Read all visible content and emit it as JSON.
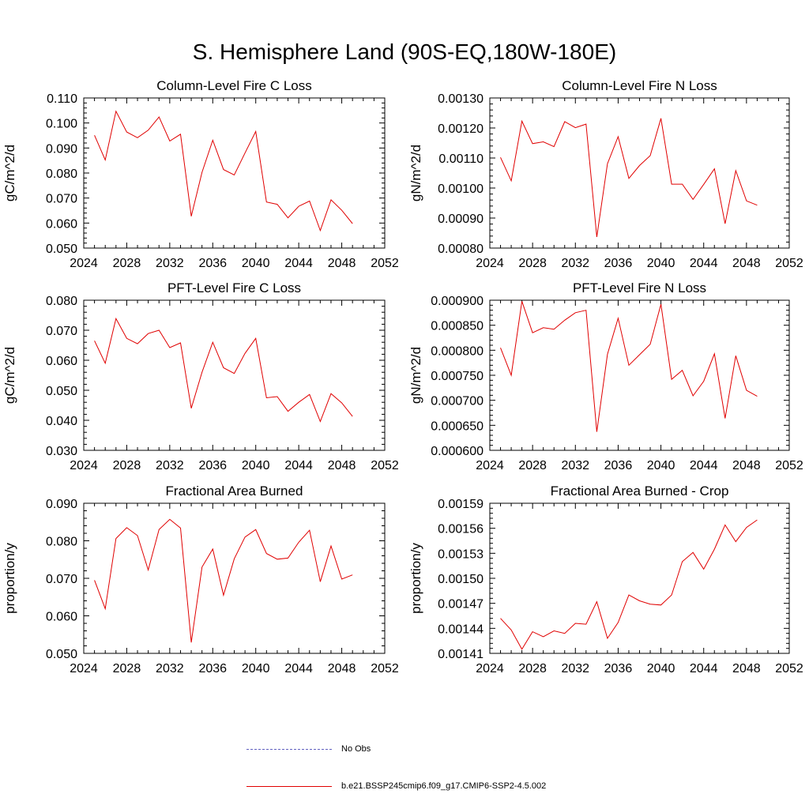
{
  "title": "S. Hemisphere Land (90S-EQ,180W-180E)",
  "legend": {
    "obs_label": "No Obs",
    "obs_color": "#6060c0",
    "model_label": "b.e21.BSSP245cmip6.f09_g17.CMIP6-SSP2-4.5.002",
    "model_color": "#e00000"
  },
  "chart_data": [
    {
      "type": "line",
      "title": "Column-Level Fire C Loss",
      "ylabel": "gC/m^2/d",
      "xlim": [
        2024,
        2052
      ],
      "xticks": [
        "2024",
        "2028",
        "2032",
        "2036",
        "2040",
        "2044",
        "2048",
        "2052"
      ],
      "ylim": [
        0.05,
        0.11
      ],
      "yticks": [
        "0.050",
        "0.060",
        "0.070",
        "0.080",
        "0.090",
        "0.100",
        "0.110"
      ],
      "x": [
        2025,
        2026,
        2027,
        2028,
        2029,
        2030,
        2031,
        2032,
        2033,
        2034,
        2035,
        2036,
        2037,
        2038,
        2039,
        2040,
        2041,
        2042,
        2043,
        2044,
        2045,
        2046,
        2047,
        2048,
        2049
      ],
      "series": [
        {
          "values": [
            0.0951,
            0.0852,
            0.1047,
            0.0964,
            0.0941,
            0.0971,
            0.1024,
            0.0928,
            0.0955,
            0.0627,
            0.0803,
            0.0931,
            0.0814,
            0.0792,
            0.088,
            0.0966,
            0.0684,
            0.0675,
            0.0621,
            0.0667,
            0.0688,
            0.057,
            0.0693,
            0.0651,
            0.0598
          ]
        }
      ]
    },
    {
      "type": "line",
      "title": "Column-Level Fire N Loss",
      "ylabel": "gN/m^2/d",
      "xlim": [
        2024,
        2052
      ],
      "xticks": [
        "2024",
        "2028",
        "2032",
        "2036",
        "2040",
        "2044",
        "2048",
        "2052"
      ],
      "ylim": [
        0.0008,
        0.0013
      ],
      "yticks": [
        "0.00080",
        "0.00090",
        "0.00100",
        "0.00110",
        "0.00120",
        "0.00130"
      ],
      "x": [
        2025,
        2026,
        2027,
        2028,
        2029,
        2030,
        2031,
        2032,
        2033,
        2034,
        2035,
        2036,
        2037,
        2038,
        2039,
        2040,
        2041,
        2042,
        2043,
        2044,
        2045,
        2046,
        2047,
        2048,
        2049
      ],
      "series": [
        {
          "values": [
            0.001102,
            0.001024,
            0.001223,
            0.001148,
            0.001154,
            0.001138,
            0.001221,
            0.001201,
            0.001213,
            0.000837,
            0.001081,
            0.001171,
            0.001032,
            0.001075,
            0.001108,
            0.001232,
            0.001013,
            0.001013,
            0.000962,
            0.001012,
            0.001064,
            0.000881,
            0.001058,
            0.000957,
            0.000943
          ]
        }
      ]
    },
    {
      "type": "line",
      "title": "PFT-Level Fire C Loss",
      "ylabel": "gC/m^2/d",
      "xlim": [
        2024,
        2052
      ],
      "xticks": [
        "2024",
        "2028",
        "2032",
        "2036",
        "2040",
        "2044",
        "2048",
        "2052"
      ],
      "ylim": [
        0.03,
        0.08
      ],
      "yticks": [
        "0.030",
        "0.040",
        "0.050",
        "0.060",
        "0.070",
        "0.080"
      ],
      "x": [
        2025,
        2026,
        2027,
        2028,
        2029,
        2030,
        2031,
        2032,
        2033,
        2034,
        2035,
        2036,
        2037,
        2038,
        2039,
        2040,
        2041,
        2042,
        2043,
        2044,
        2045,
        2046,
        2047,
        2048,
        2049
      ],
      "series": [
        {
          "values": [
            0.0665,
            0.059,
            0.0739,
            0.0673,
            0.0655,
            0.0689,
            0.07,
            0.0642,
            0.0658,
            0.044,
            0.056,
            0.066,
            0.0575,
            0.0556,
            0.0623,
            0.0673,
            0.0475,
            0.0479,
            0.043,
            0.046,
            0.0486,
            0.0396,
            0.0489,
            0.0458,
            0.0413
          ]
        }
      ]
    },
    {
      "type": "line",
      "title": "PFT-Level Fire N Loss",
      "ylabel": "gN/m^2/d",
      "xlim": [
        2024,
        2052
      ],
      "xticks": [
        "2024",
        "2028",
        "2032",
        "2036",
        "2040",
        "2044",
        "2048",
        "2052"
      ],
      "ylim": [
        0.0006,
        0.0009
      ],
      "yticks": [
        "0.000600",
        "0.000650",
        "0.000700",
        "0.000750",
        "0.000800",
        "0.000850",
        "0.000900"
      ],
      "x": [
        2025,
        2026,
        2027,
        2028,
        2029,
        2030,
        2031,
        2032,
        2033,
        2034,
        2035,
        2036,
        2037,
        2038,
        2039,
        2040,
        2041,
        2042,
        2043,
        2044,
        2045,
        2046,
        2047,
        2048,
        2049
      ],
      "series": [
        {
          "values": [
            0.000805,
            0.00075,
            0.000898,
            0.000835,
            0.000845,
            0.000842,
            0.00086,
            0.000875,
            0.00088,
            0.000637,
            0.000792,
            0.000864,
            0.00077,
            0.000791,
            0.000812,
            0.000892,
            0.000742,
            0.00076,
            0.000709,
            0.000738,
            0.000793,
            0.000664,
            0.000789,
            0.00072,
            0.000708
          ]
        }
      ]
    },
    {
      "type": "line",
      "title": "Fractional Area Burned",
      "ylabel": "proportion/y",
      "xlim": [
        2024,
        2052
      ],
      "xticks": [
        "2024",
        "2028",
        "2032",
        "2036",
        "2040",
        "2044",
        "2048",
        "2052"
      ],
      "ylim": [
        0.05,
        0.09
      ],
      "yticks": [
        "0.050",
        "0.060",
        "0.070",
        "0.080",
        "0.090"
      ],
      "x": [
        2025,
        2026,
        2027,
        2028,
        2029,
        2030,
        2031,
        2032,
        2033,
        2034,
        2035,
        2036,
        2037,
        2038,
        2039,
        2040,
        2041,
        2042,
        2043,
        2044,
        2045,
        2046,
        2047,
        2048,
        2049
      ],
      "series": [
        {
          "values": [
            0.0695,
            0.0619,
            0.0806,
            0.0835,
            0.0814,
            0.0722,
            0.083,
            0.0857,
            0.0834,
            0.0529,
            0.073,
            0.0778,
            0.0655,
            0.0752,
            0.081,
            0.083,
            0.0766,
            0.0751,
            0.0754,
            0.0796,
            0.0828,
            0.0691,
            0.0786,
            0.0698,
            0.0709
          ]
        }
      ]
    },
    {
      "type": "line",
      "title": "Fractional Area Burned - Crop",
      "ylabel": "proportion/y",
      "xlim": [
        2024,
        2052
      ],
      "xticks": [
        "2024",
        "2028",
        "2032",
        "2036",
        "2040",
        "2044",
        "2048",
        "2052"
      ],
      "ylim": [
        0.00141,
        0.00159
      ],
      "yticks": [
        "0.00141",
        "0.00144",
        "0.00147",
        "0.00150",
        "0.00153",
        "0.00156",
        "0.00159"
      ],
      "x": [
        2025,
        2026,
        2027,
        2028,
        2029,
        2030,
        2031,
        2032,
        2033,
        2034,
        2035,
        2036,
        2037,
        2038,
        2039,
        2040,
        2041,
        2042,
        2043,
        2044,
        2045,
        2046,
        2047,
        2048,
        2049
      ],
      "series": [
        {
          "values": [
            0.001452,
            0.001438,
            0.001415,
            0.001436,
            0.00143,
            0.001437,
            0.001434,
            0.001446,
            0.001445,
            0.001472,
            0.001428,
            0.001447,
            0.00148,
            0.001473,
            0.001469,
            0.001468,
            0.00148,
            0.00152,
            0.001531,
            0.001511,
            0.001535,
            0.001564,
            0.001544,
            0.001561,
            0.00157
          ]
        }
      ]
    }
  ]
}
